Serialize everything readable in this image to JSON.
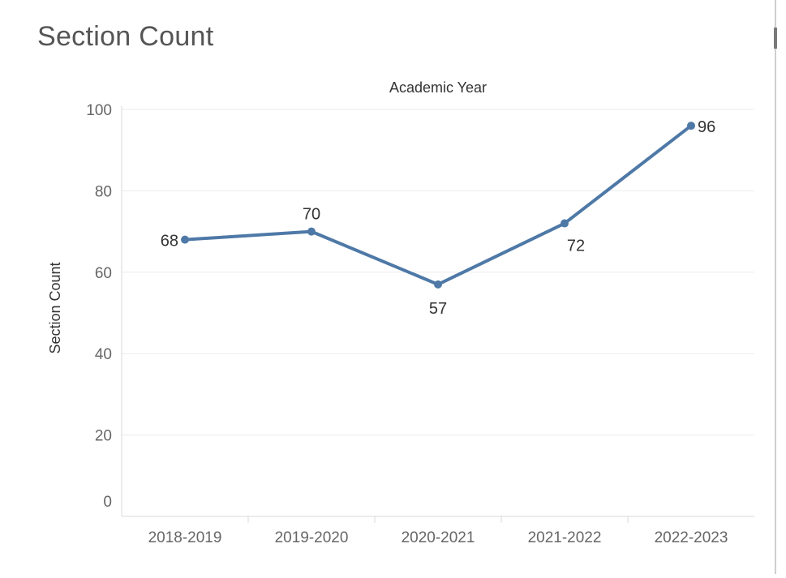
{
  "page": {
    "title": "Section Count"
  },
  "chart_data": {
    "type": "line",
    "title": "Section Count",
    "xlabel": "Academic Year",
    "ylabel": "Section Count",
    "categories": [
      "2018-2019",
      "2019-2020",
      "2020-2021",
      "2021-2022",
      "2022-2023"
    ],
    "values": [
      68,
      70,
      57,
      72,
      96
    ],
    "data_labels": [
      "68",
      "70",
      "57",
      "72",
      "96"
    ],
    "ylim": [
      0,
      100
    ],
    "yticks": [
      0,
      20,
      40,
      60,
      80,
      100
    ],
    "grid": true,
    "line_color": "#4e79a7",
    "grid_color": "#ebebeb",
    "axis_text_color": "#666666",
    "label_color": "#333333"
  }
}
